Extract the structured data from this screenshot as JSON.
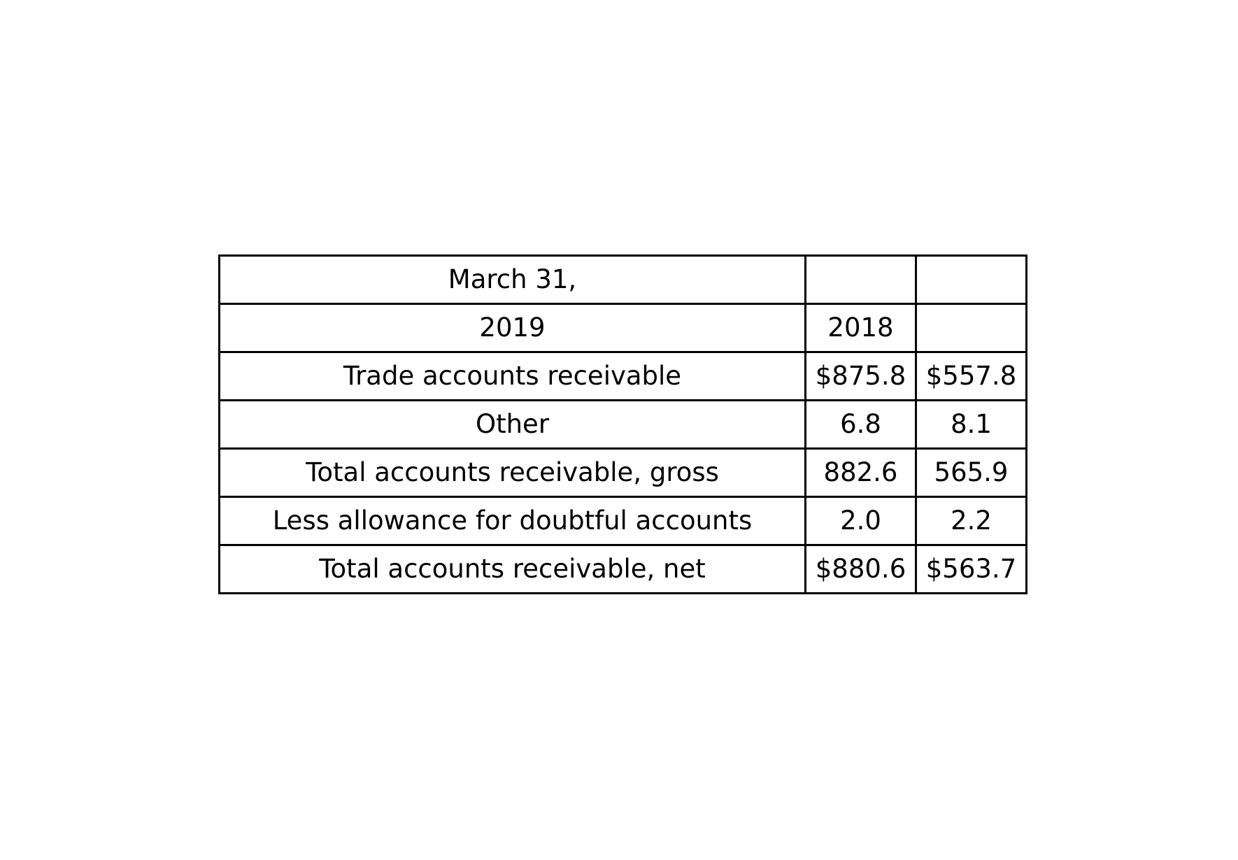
{
  "table": {
    "rows": [
      [
        "March 31,",
        "",
        ""
      ],
      [
        "2019",
        "2018",
        ""
      ],
      [
        "Trade accounts receivable",
        "$875.8",
        "$557.8"
      ],
      [
        "Other",
        "6.8",
        "8.1"
      ],
      [
        "Total accounts receivable, gross",
        "882.6",
        "565.9"
      ],
      [
        "Less allowance for doubtful accounts",
        "2.0",
        "2.2"
      ],
      [
        "Total accounts receivable, net",
        "$880.6",
        "$563.7"
      ]
    ]
  }
}
